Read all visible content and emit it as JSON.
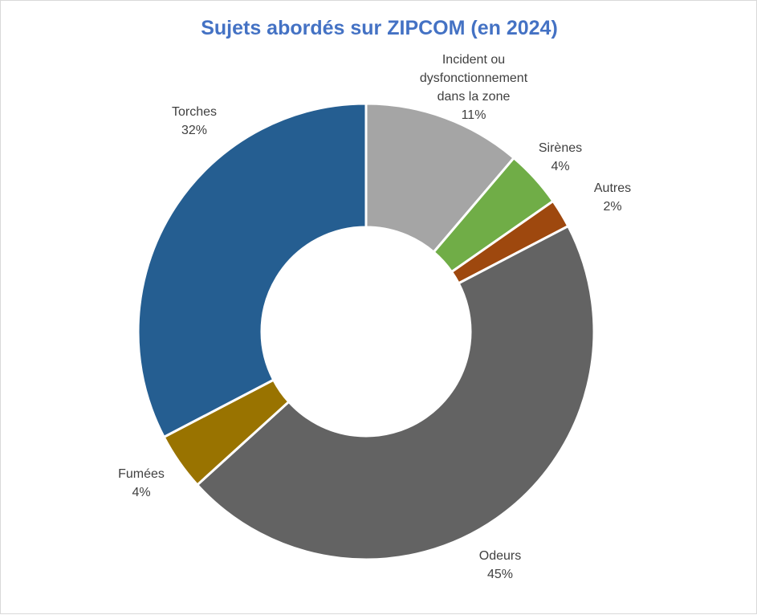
{
  "chart_data": {
    "type": "pie",
    "title": "Sujets abordés sur ZIPCOM (en 2024)",
    "donut": true,
    "slices": [
      {
        "label": [
          "Incident ou",
          "dysfonctionnement",
          "dans la zone"
        ],
        "value": 11,
        "display": "11%",
        "color": "#a5a5a5"
      },
      {
        "label": [
          "Sirènes"
        ],
        "value": 4,
        "display": "4%",
        "color": "#70ad47"
      },
      {
        "label": [
          "Autres"
        ],
        "value": 2,
        "display": "2%",
        "color": "#9e480e"
      },
      {
        "label": [
          "Odeurs"
        ],
        "value": 45,
        "display": "45%",
        "color": "#636363"
      },
      {
        "label": [
          "Fumées"
        ],
        "value": 4,
        "display": "4%",
        "color": "#997300"
      },
      {
        "label": [
          "Torches"
        ],
        "value": 32,
        "display": "32%",
        "color": "#255e91"
      }
    ]
  }
}
